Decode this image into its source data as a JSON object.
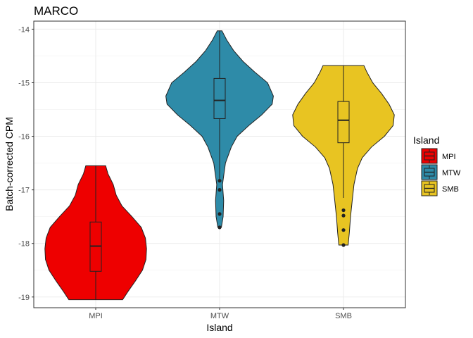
{
  "chart_data": {
    "type": "violin",
    "title": "MARCO",
    "xlabel": "Island",
    "ylabel": "Batch-corrected CPM",
    "categories": [
      "MPI",
      "MTW",
      "SMB"
    ],
    "ylim": [
      -19.2,
      -13.85
    ],
    "yticks": [
      -19,
      -18,
      -17,
      -16,
      -15,
      -14
    ],
    "grid": true,
    "legend": {
      "title": "Island",
      "position": "right",
      "entries": [
        "MPI",
        "MTW",
        "SMB"
      ]
    },
    "colors": {
      "MPI": "#EE0000",
      "MTW": "#2E8BA8",
      "SMB": "#E8C422"
    },
    "series": [
      {
        "name": "MPI",
        "min": -19.05,
        "q1": -18.52,
        "median": -18.05,
        "q3": -17.6,
        "max": -16.55,
        "outliers": [],
        "density": [
          [
            -19.05,
            0.46
          ],
          [
            -18.9,
            0.55
          ],
          [
            -18.7,
            0.68
          ],
          [
            -18.5,
            0.8
          ],
          [
            -18.3,
            0.86
          ],
          [
            -18.1,
            0.87
          ],
          [
            -17.9,
            0.85
          ],
          [
            -17.7,
            0.78
          ],
          [
            -17.5,
            0.62
          ],
          [
            -17.3,
            0.45
          ],
          [
            -17.1,
            0.35
          ],
          [
            -16.9,
            0.3
          ],
          [
            -16.7,
            0.21
          ],
          [
            -16.55,
            0.17
          ]
        ]
      },
      {
        "name": "MTW",
        "min": -16.85,
        "q1": -15.67,
        "median": -15.33,
        "q3": -14.92,
        "max": -14.03,
        "outliers": [
          -16.83,
          -17.0,
          -17.45,
          -17.7
        ],
        "density": [
          [
            -17.7,
            0.03
          ],
          [
            -17.5,
            0.06
          ],
          [
            -17.2,
            0.07
          ],
          [
            -16.9,
            0.05
          ],
          [
            -16.5,
            0.1
          ],
          [
            -16.2,
            0.2
          ],
          [
            -16.0,
            0.3
          ],
          [
            -15.8,
            0.5
          ],
          [
            -15.6,
            0.72
          ],
          [
            -15.4,
            0.9
          ],
          [
            -15.25,
            0.92
          ],
          [
            -15.0,
            0.82
          ],
          [
            -14.8,
            0.6
          ],
          [
            -14.6,
            0.4
          ],
          [
            -14.4,
            0.24
          ],
          [
            -14.2,
            0.12
          ],
          [
            -14.03,
            0.04
          ]
        ]
      },
      {
        "name": "SMB",
        "min": -17.15,
        "q1": -16.12,
        "median": -15.7,
        "q3": -15.35,
        "max": -14.68,
        "outliers": [
          -17.38,
          -17.48,
          -17.75,
          -18.03
        ],
        "density": [
          [
            -18.03,
            0.08
          ],
          [
            -17.8,
            0.1
          ],
          [
            -17.5,
            0.12
          ],
          [
            -17.2,
            0.15
          ],
          [
            -16.9,
            0.18
          ],
          [
            -16.6,
            0.24
          ],
          [
            -16.4,
            0.32
          ],
          [
            -16.2,
            0.48
          ],
          [
            -16.0,
            0.7
          ],
          [
            -15.8,
            0.85
          ],
          [
            -15.6,
            0.87
          ],
          [
            -15.4,
            0.78
          ],
          [
            -15.2,
            0.65
          ],
          [
            -15.0,
            0.5
          ],
          [
            -14.8,
            0.4
          ],
          [
            -14.68,
            0.35
          ]
        ]
      }
    ]
  }
}
